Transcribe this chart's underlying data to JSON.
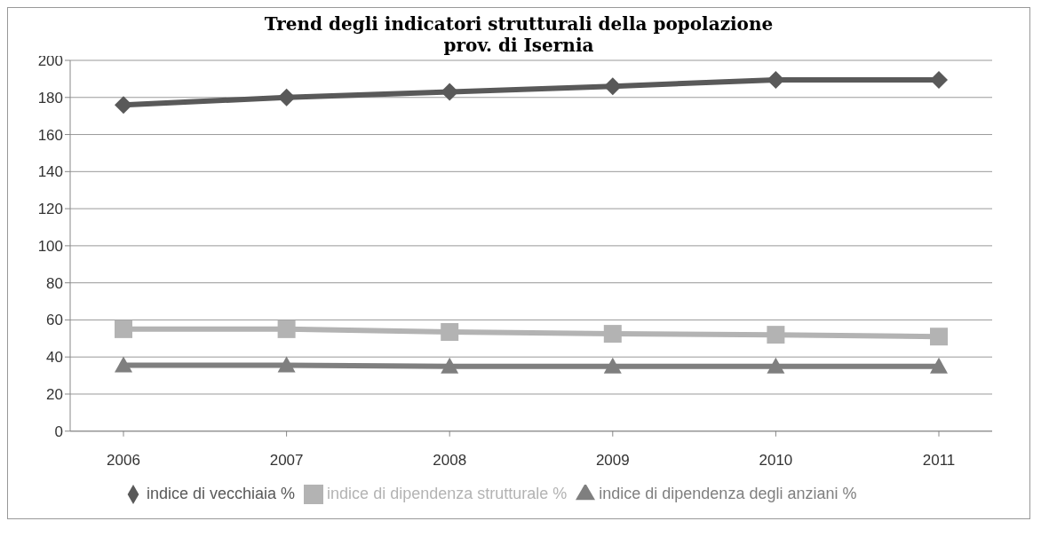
{
  "chart_data": {
    "type": "line",
    "title": "Trend degli indicatori strutturali della popolazione\nprov. di Isernia",
    "categories": [
      "2006",
      "2007",
      "2008",
      "2009",
      "2010",
      "2011"
    ],
    "series": [
      {
        "name": "indice di vecchiaia %",
        "color": "#595959",
        "marker": "diamond",
        "values": [
          176,
          180,
          183,
          186,
          189.5,
          189.5
        ]
      },
      {
        "name": "indice di dipendenza strutturale %",
        "color": "#b3b3b3",
        "marker": "square",
        "values": [
          55,
          55,
          53.5,
          52.5,
          52,
          51
        ]
      },
      {
        "name": "indice di dipendenza degli anziani %",
        "color": "#7f7f7f",
        "marker": "triangle",
        "values": [
          35.5,
          35.5,
          35,
          35,
          35,
          35
        ]
      }
    ],
    "ylim": [
      0,
      200
    ],
    "yticks": [
      0,
      20,
      40,
      60,
      80,
      100,
      120,
      140,
      160,
      180,
      200
    ],
    "grid": "y",
    "legend": "bottom"
  }
}
